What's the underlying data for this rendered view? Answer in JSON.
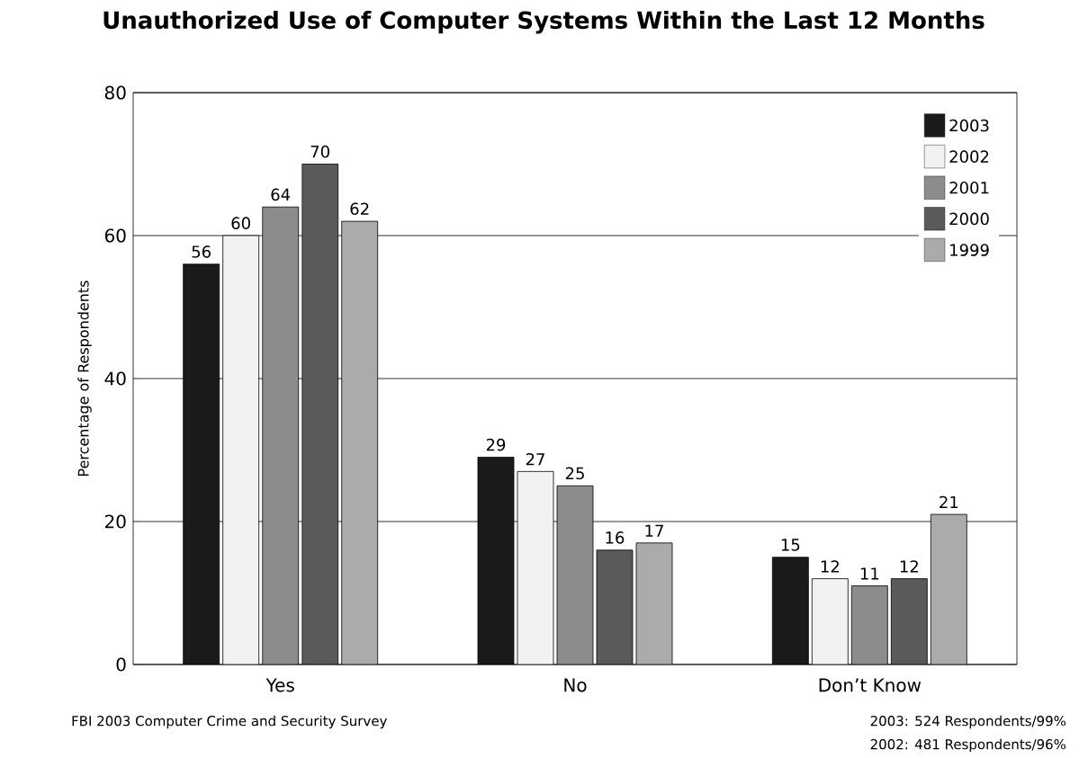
{
  "chart_data": {
    "type": "bar",
    "title": "Unauthorized Use of Computer Systems Within the Last 12 Months",
    "ylabel": "Percentage of Respondents",
    "categories": [
      "Yes",
      "No",
      "Don’t Know"
    ],
    "series": [
      {
        "name": "2003",
        "color": "#1a1a1a",
        "values": [
          56,
          29,
          15
        ]
      },
      {
        "name": "2002",
        "color": "#f2f2f2",
        "values": [
          60,
          27,
          12
        ]
      },
      {
        "name": "2001",
        "color": "#8c8c8c",
        "values": [
          64,
          25,
          11
        ]
      },
      {
        "name": "2000",
        "color": "#5a5a5a",
        "values": [
          70,
          16,
          12
        ]
      },
      {
        "name": "1999",
        "color": "#ababab",
        "values": [
          62,
          17,
          21
        ]
      }
    ],
    "ylim": [
      0,
      80
    ],
    "yticks": [
      0,
      20,
      40,
      60,
      80
    ],
    "grid": "y",
    "legend": "top right",
    "data_labels": true,
    "annotations": [
      "FBI 2003 Computer Crime and Security Survey",
      "2003: 524 Respondents/99%",
      "2002: 481 Respondents/96%"
    ]
  }
}
